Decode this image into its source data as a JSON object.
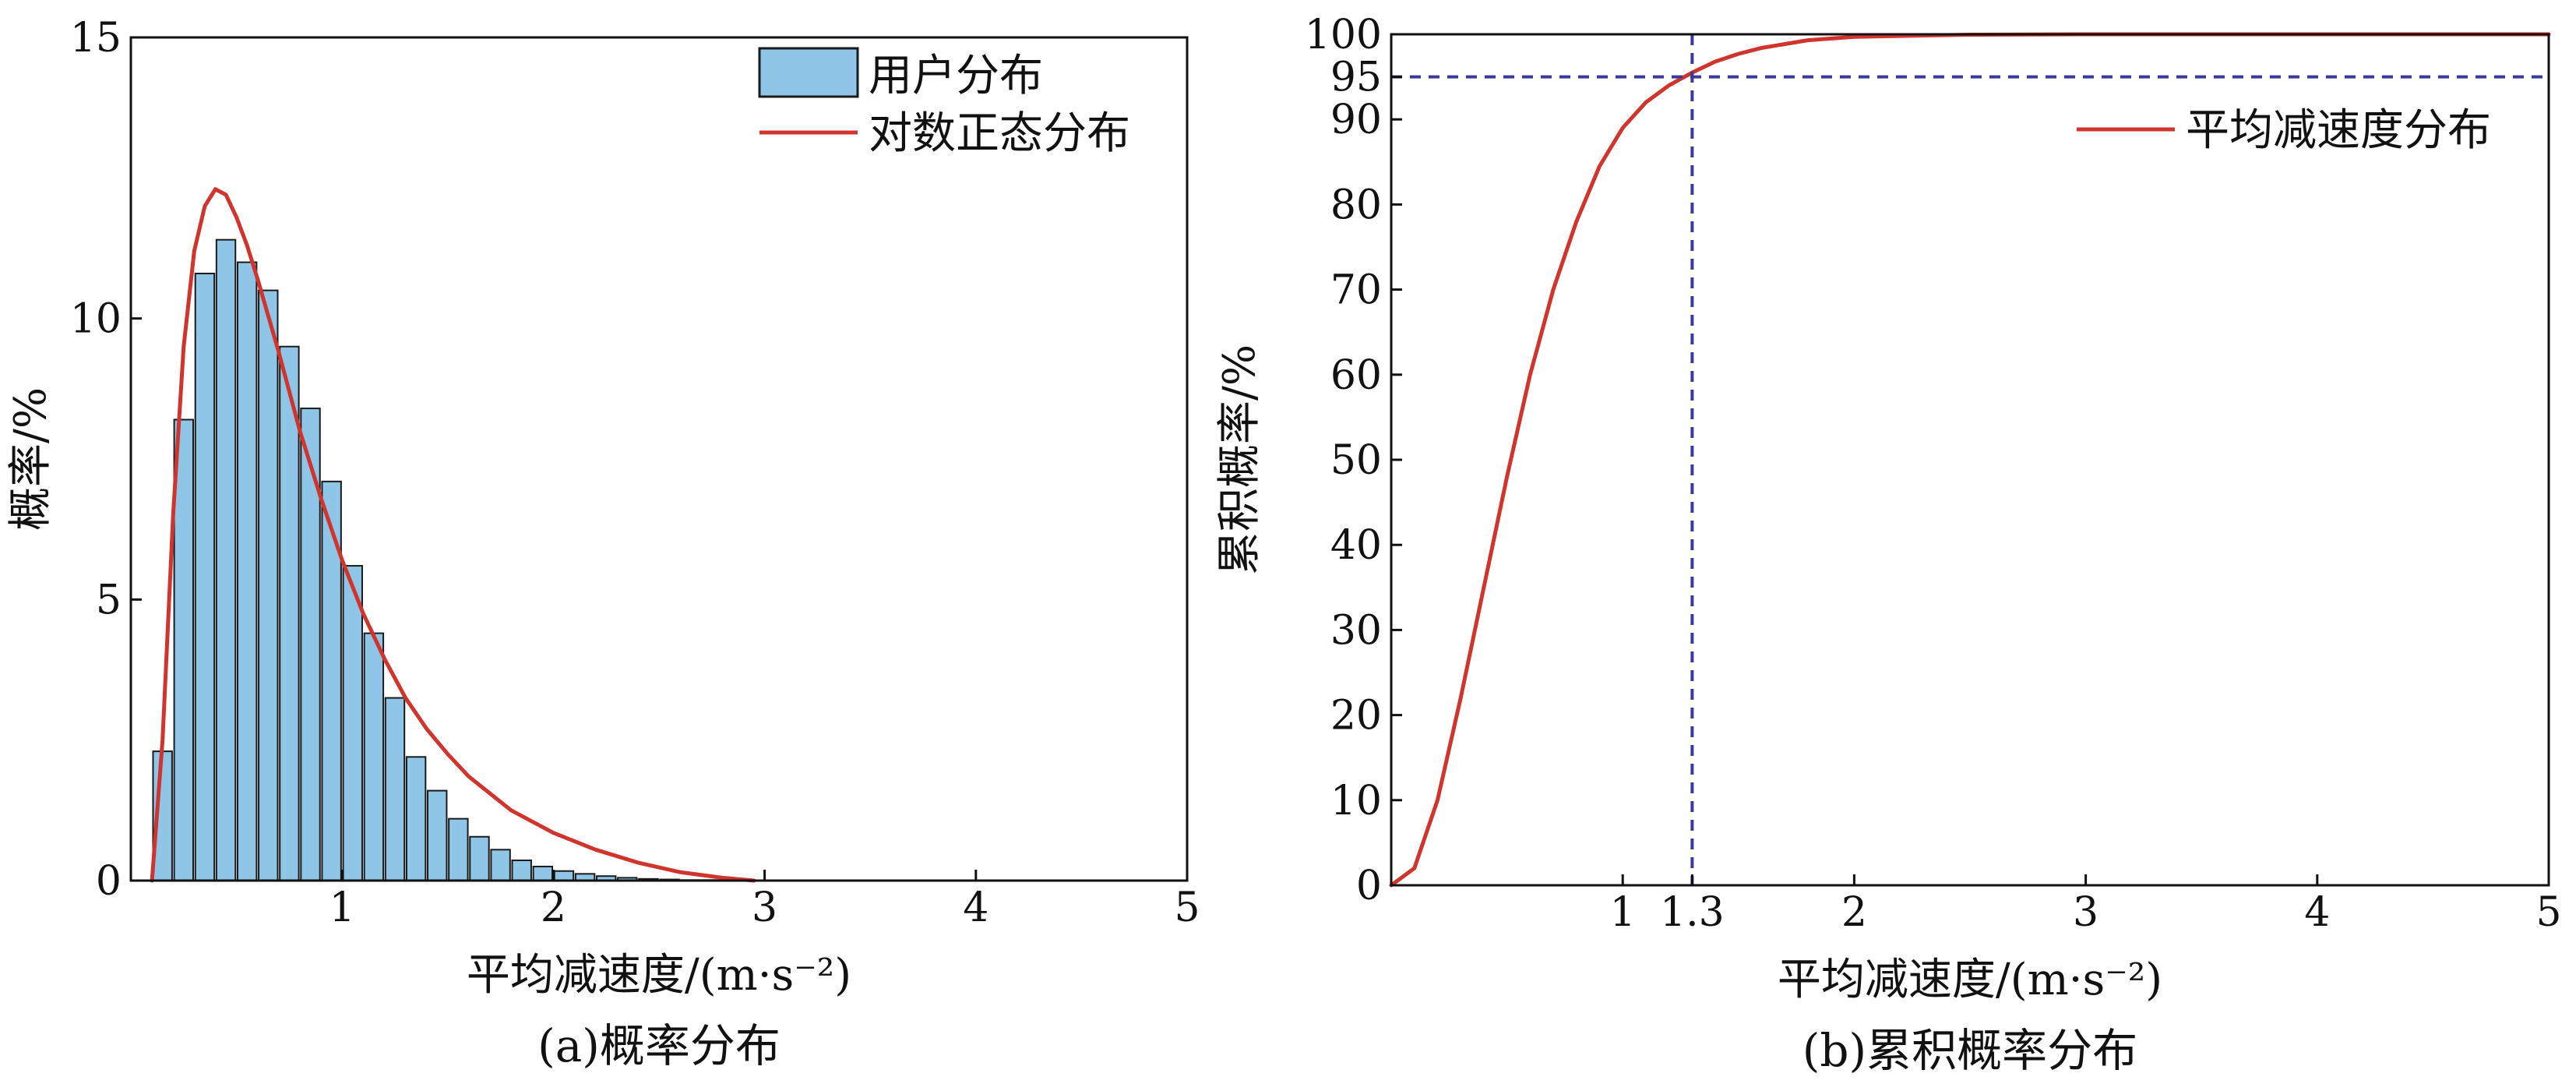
{
  "chart_data": [
    {
      "type": "bar",
      "caption": "(a)概率分布",
      "xlabel": "平均减速度/(m·s⁻²)",
      "ylabel": "概率/%",
      "xlim": [
        0,
        5
      ],
      "ylim": [
        0,
        15
      ],
      "xticks": [
        1,
        2,
        3,
        4,
        5
      ],
      "xtick_labels": [
        "1",
        "2",
        "3",
        "4",
        "5"
      ],
      "yticks": [
        0,
        5,
        10,
        15
      ],
      "ytick_labels": [
        "0",
        "5",
        "10",
        "15"
      ],
      "grid": false,
      "legend_position": "top-right",
      "bar_width": 0.09,
      "series": [
        {
          "name": "用户分布",
          "kind": "bar",
          "color": "#8fc6e8",
          "edge_color": "#1a1a1a",
          "x": [
            0.15,
            0.25,
            0.35,
            0.45,
            0.55,
            0.65,
            0.75,
            0.85,
            0.95,
            1.05,
            1.15,
            1.25,
            1.35,
            1.45,
            1.55,
            1.65,
            1.75,
            1.85,
            1.95,
            2.05,
            2.15,
            2.25,
            2.35,
            2.45,
            2.55,
            2.65,
            2.75,
            2.85
          ],
          "values": [
            2.3,
            8.2,
            10.8,
            11.4,
            11.0,
            10.5,
            9.5,
            8.4,
            7.1,
            5.6,
            4.4,
            3.25,
            2.2,
            1.6,
            1.1,
            0.78,
            0.55,
            0.36,
            0.25,
            0.17,
            0.12,
            0.08,
            0.05,
            0.03,
            0.02,
            0.01,
            0.01,
            0.01
          ]
        },
        {
          "name": "对数正态分布",
          "kind": "line",
          "color": "#d0342c",
          "x": [
            0.1,
            0.15,
            0.2,
            0.25,
            0.3,
            0.35,
            0.4,
            0.45,
            0.5,
            0.55,
            0.6,
            0.7,
            0.8,
            0.9,
            1.0,
            1.1,
            1.2,
            1.3,
            1.4,
            1.5,
            1.6,
            1.8,
            2.0,
            2.2,
            2.4,
            2.6,
            2.8,
            2.95
          ],
          "values": [
            0.0,
            2.5,
            6.5,
            9.5,
            11.2,
            12.0,
            12.3,
            12.2,
            11.8,
            11.3,
            10.7,
            9.4,
            8.0,
            6.8,
            5.7,
            4.75,
            3.95,
            3.25,
            2.7,
            2.25,
            1.85,
            1.25,
            0.85,
            0.55,
            0.32,
            0.15,
            0.05,
            0.0
          ]
        }
      ]
    },
    {
      "type": "line",
      "caption": "(b)累积概率分布",
      "xlabel": "平均减速度/(m·s⁻²)",
      "ylabel": "累积概率/%",
      "xlim": [
        0,
        5
      ],
      "ylim": [
        0,
        100
      ],
      "xticks": [
        1,
        1.3,
        2,
        3,
        4,
        5
      ],
      "xtick_labels": [
        "1",
        "1.3",
        "2",
        "3",
        "4",
        "5"
      ],
      "yticks": [
        0,
        10,
        20,
        30,
        40,
        50,
        60,
        70,
        80,
        90,
        95,
        100
      ],
      "ytick_labels": [
        "0",
        "10",
        "20",
        "30",
        "40",
        "50",
        "60",
        "70",
        "80",
        "90",
        "95",
        "100"
      ],
      "grid": false,
      "legend_position": "top-right",
      "series": [
        {
          "name": "平均减速度分布",
          "color": "#d0342c",
          "x": [
            0.0,
            0.1,
            0.2,
            0.3,
            0.4,
            0.5,
            0.6,
            0.7,
            0.8,
            0.9,
            1.0,
            1.1,
            1.2,
            1.3,
            1.4,
            1.5,
            1.6,
            1.8,
            2.0,
            2.5,
            3.0,
            4.0,
            5.0
          ],
          "values": [
            0.0,
            2.0,
            10.0,
            22.0,
            35.0,
            48.0,
            60.0,
            70.0,
            78.0,
            84.5,
            89.0,
            92.0,
            94.0,
            95.5,
            96.8,
            97.7,
            98.4,
            99.3,
            99.7,
            99.95,
            100.0,
            100.0,
            100.0
          ]
        }
      ],
      "reference_lines": {
        "x": 1.3,
        "y": 95,
        "color": "#3a3a9a",
        "style": "dashed"
      }
    }
  ]
}
